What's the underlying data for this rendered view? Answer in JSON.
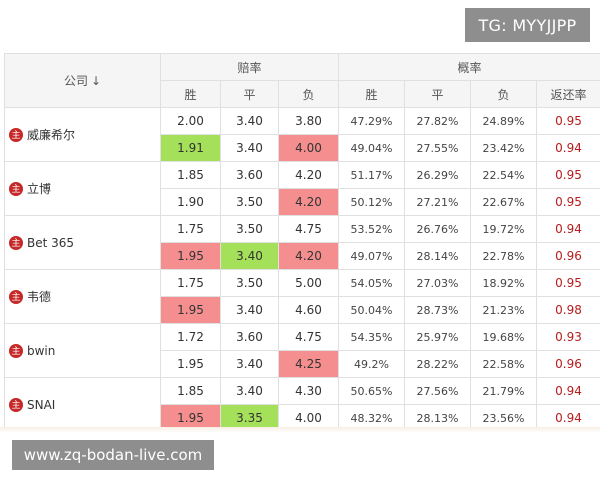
{
  "watermark_top": "TG: MYYJJPP",
  "watermark_bottom": "www.zq-bodan-live.com",
  "header": {
    "company": "公司",
    "sort_arrow": "↓",
    "odds_group": "赔率",
    "prob_group": "概率",
    "win": "胜",
    "draw": "平",
    "lose": "负",
    "prob_win": "胜",
    "prob_draw": "平",
    "prob_lose": "负",
    "return_rate": "返还率"
  },
  "home_icon_label": "主",
  "highlight_colors": {
    "green": "#a5e05a",
    "red": "#f58f8f"
  },
  "companies": [
    {
      "name": "威廉希尔",
      "rows": [
        {
          "win": "2.00",
          "draw": "3.40",
          "lose": "3.80",
          "pw": "47.29%",
          "pd": "27.82%",
          "pl": "24.89%",
          "ret": "0.95"
        },
        {
          "win": "1.91",
          "draw": "3.40",
          "lose": "4.00",
          "pw": "49.04%",
          "pd": "27.55%",
          "pl": "23.42%",
          "ret": "0.94"
        }
      ]
    },
    {
      "name": "立博",
      "rows": [
        {
          "win": "1.85",
          "draw": "3.60",
          "lose": "4.20",
          "pw": "51.17%",
          "pd": "26.29%",
          "pl": "22.54%",
          "ret": "0.95"
        },
        {
          "win": "1.90",
          "draw": "3.50",
          "lose": "4.20",
          "pw": "50.12%",
          "pd": "27.21%",
          "pl": "22.67%",
          "ret": "0.95"
        }
      ]
    },
    {
      "name": "Bet 365",
      "rows": [
        {
          "win": "1.75",
          "draw": "3.50",
          "lose": "4.75",
          "pw": "53.52%",
          "pd": "26.76%",
          "pl": "19.72%",
          "ret": "0.94"
        },
        {
          "win": "1.95",
          "draw": "3.40",
          "lose": "4.20",
          "pw": "49.07%",
          "pd": "28.14%",
          "pl": "22.78%",
          "ret": "0.96"
        }
      ]
    },
    {
      "name": "韦德",
      "rows": [
        {
          "win": "1.75",
          "draw": "3.50",
          "lose": "5.00",
          "pw": "54.05%",
          "pd": "27.03%",
          "pl": "18.92%",
          "ret": "0.95"
        },
        {
          "win": "1.95",
          "draw": "3.40",
          "lose": "4.60",
          "pw": "50.04%",
          "pd": "28.73%",
          "pl": "21.23%",
          "ret": "0.98"
        }
      ]
    },
    {
      "name": "bwin",
      "rows": [
        {
          "win": "1.72",
          "draw": "3.60",
          "lose": "4.75",
          "pw": "54.35%",
          "pd": "25.97%",
          "pl": "19.68%",
          "ret": "0.93"
        },
        {
          "win": "1.95",
          "draw": "3.40",
          "lose": "4.25",
          "pw": "49.2%",
          "pd": "28.22%",
          "pl": "22.58%",
          "ret": "0.96"
        }
      ]
    },
    {
      "name": "SNAI",
      "rows": [
        {
          "win": "1.85",
          "draw": "3.40",
          "lose": "4.30",
          "pw": "50.65%",
          "pd": "27.56%",
          "pl": "21.79%",
          "ret": "0.94"
        },
        {
          "win": "1.95",
          "draw": "3.35",
          "lose": "4.00",
          "pw": "48.32%",
          "pd": "28.13%",
          "pl": "23.56%",
          "ret": "0.94"
        }
      ]
    }
  ]
}
